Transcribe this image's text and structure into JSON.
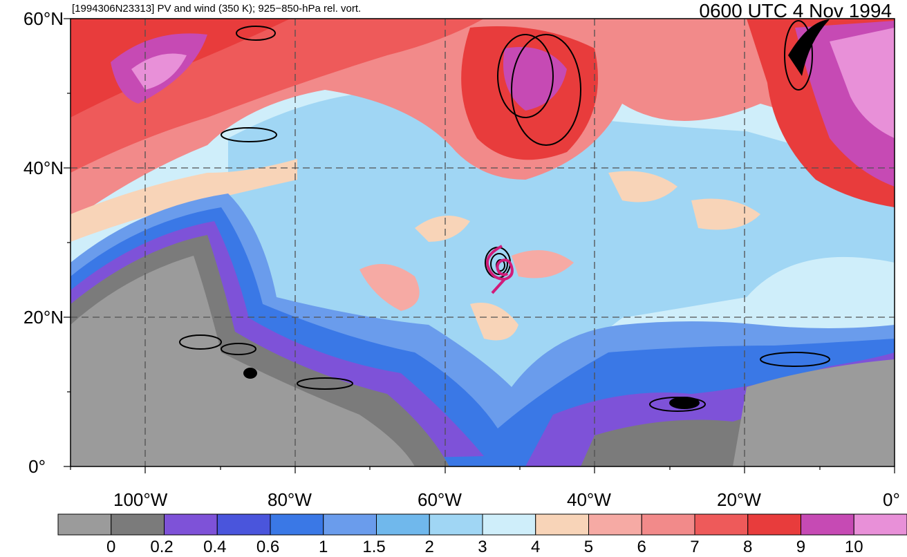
{
  "header": {
    "left_title": "[1994306N23313] PV and wind (350 K); 925−850-hPa rel. vort.",
    "right_title": "0600 UTC 4 Nov 1994"
  },
  "map": {
    "lon_min": -110,
    "lon_max": 0,
    "lat_min": 0,
    "lat_max": 60,
    "lat_labels": [
      {
        "lat": 60,
        "text": "60°N"
      },
      {
        "lat": 40,
        "text": "40°N"
      },
      {
        "lat": 20,
        "text": "20°N"
      },
      {
        "lat": 0,
        "text": "0°"
      }
    ],
    "lon_labels": [
      {
        "lon": -100,
        "text": "100°W"
      },
      {
        "lon": -80,
        "text": "80°W"
      },
      {
        "lon": -60,
        "text": "60°W"
      },
      {
        "lon": -40,
        "text": "40°W"
      },
      {
        "lon": -20,
        "text": "20°W"
      },
      {
        "lon": 0,
        "text": "0°"
      }
    ],
    "storm_center": {
      "lon": -52.5,
      "lat": 26.5
    }
  },
  "colorbar": {
    "colors": [
      "#9b9b9b",
      "#7b7b7b",
      "#7e52d8",
      "#4a55dc",
      "#3a78e6",
      "#6a9cec",
      "#70b8ec",
      "#a0d6f4",
      "#cfeefa",
      "#f8d4b8",
      "#f6aaa4",
      "#f28a8a",
      "#ee5a5a",
      "#e83c3c",
      "#c64ab4",
      "#e890d8"
    ],
    "labels": [
      "0",
      "0.2",
      "0.4",
      "0.6",
      "1",
      "1.5",
      "2",
      "3",
      "4",
      "5",
      "6",
      "7",
      "8",
      "9",
      "10"
    ]
  }
}
